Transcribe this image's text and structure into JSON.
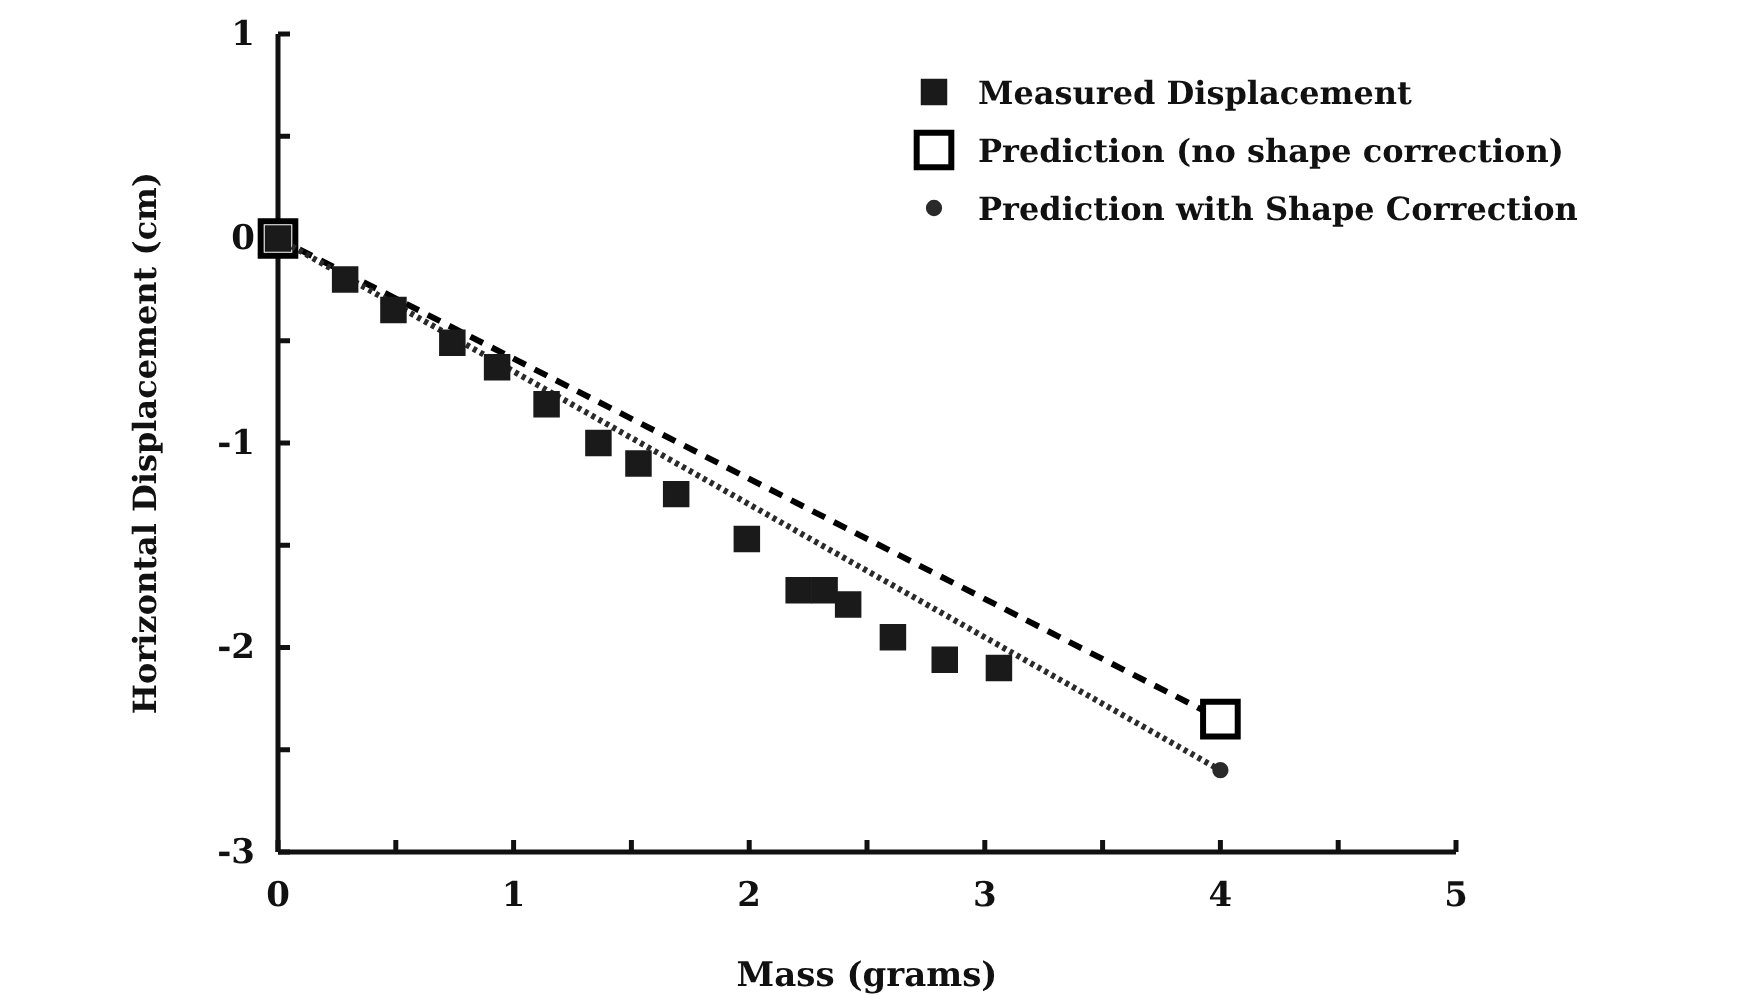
{
  "chart_data": {
    "type": "scatter",
    "xlabel": "Mass (grams)",
    "ylabel": "Horizontal Displacement (cm)",
    "xlim": [
      0,
      5
    ],
    "ylim": [
      -3,
      1
    ],
    "xticks": [
      0,
      {
        "value": 0.5,
        "label": null
      },
      1,
      {
        "value": 1.5,
        "label": null
      },
      2,
      {
        "value": 2.5,
        "label": null
      },
      3,
      {
        "value": 3.5,
        "label": null
      },
      4,
      {
        "value": 4.5,
        "label": null
      },
      5
    ],
    "yticks": [
      -3,
      {
        "value": -2.5,
        "label": null
      },
      -2,
      {
        "value": -1.5,
        "label": null
      },
      -1,
      {
        "value": -0.5,
        "label": null
      },
      0,
      {
        "value": 0.5,
        "label": null
      },
      1
    ],
    "legend": "top right",
    "grid": false,
    "series": [
      {
        "name": "Measured Displacement",
        "marker": "square",
        "color": "#1a1a1a",
        "x": [
          0,
          0.285,
          0.49,
          0.74,
          0.93,
          1.14,
          1.36,
          1.53,
          1.69,
          1.99,
          2.21,
          2.32,
          2.42,
          2.61,
          2.83,
          3.06
        ],
        "values": [
          0,
          -0.2,
          -0.35,
          -0.51,
          -0.63,
          -0.81,
          -1.0,
          -1.1,
          -1.25,
          -1.47,
          -1.72,
          -1.72,
          -1.79,
          -1.95,
          -2.06,
          -2.1
        ]
      },
      {
        "name": "Prediction (no shape correction)",
        "type": "line",
        "marker": "square",
        "line_style": "dashed",
        "color": "#000000",
        "x": [
          0,
          4
        ],
        "values": [
          0,
          -2.35
        ]
      },
      {
        "name": "Prediction with Shape Correction",
        "type": "line",
        "marker": "circle",
        "line_style": "dotted",
        "color": "#2a2a2a",
        "x": [
          0,
          4
        ],
        "values": [
          0,
          -2.6
        ]
      }
    ]
  }
}
